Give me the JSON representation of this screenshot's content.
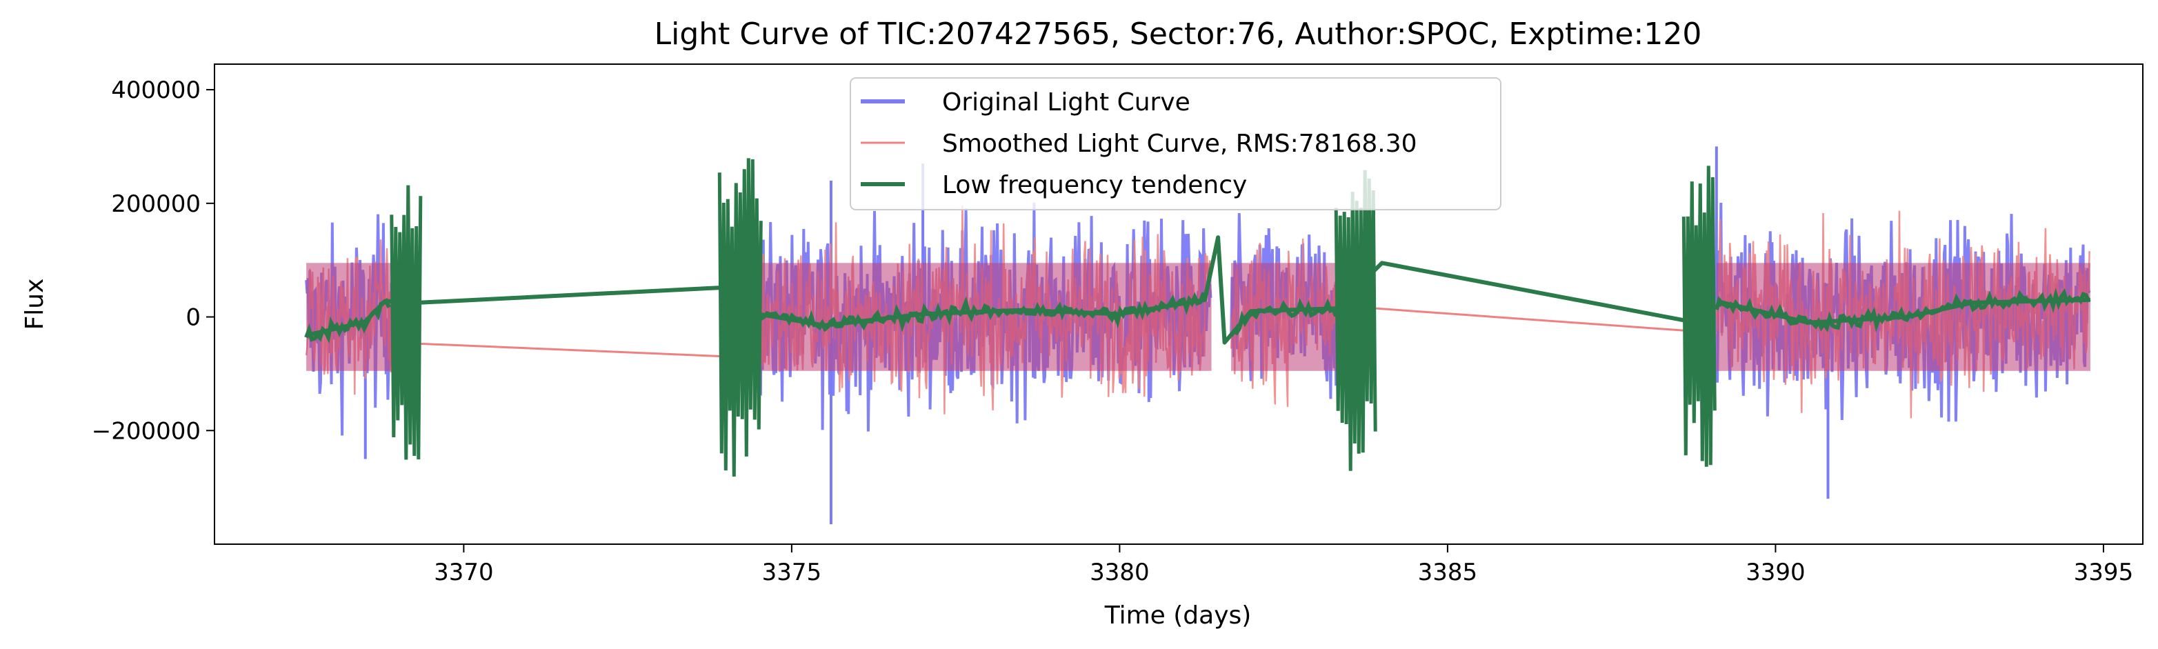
{
  "chart_data": {
    "type": "line",
    "title": "Light Curve of TIC:207427565, Sector:76, Author:SPOC, Exptime:120",
    "xlabel": "Time (days)",
    "ylabel": "Flux",
    "xlim": [
      3366.2,
      3395.6
    ],
    "ylim": [
      -400000,
      445000
    ],
    "xticks": [
      3370,
      3375,
      3380,
      3385,
      3390,
      3395
    ],
    "xtick_labels": [
      "3370",
      "3375",
      "3380",
      "3385",
      "3390",
      "3395"
    ],
    "yticks": [
      -200000,
      0,
      200000,
      400000
    ],
    "ytick_labels": [
      "−200000",
      "0",
      "200000",
      "400000"
    ],
    "grid": false,
    "legend_position": "top-center",
    "segments": [
      [
        3367.6,
        3368.9
      ],
      [
        3374.5,
        3381.4
      ],
      [
        3381.7,
        3383.3
      ],
      [
        3389.1,
        3394.8
      ]
    ],
    "series": [
      {
        "name": "Original Light Curve",
        "color": "#7b7bf5",
        "amplitude": 110000,
        "extremes": {
          "min": -365000,
          "max": 300000
        }
      },
      {
        "name": "Smoothed Light Curve, RMS:78168.30",
        "color": "#f08080",
        "amplitude": 95000,
        "gap_connections": [
          [
            3368.9,
            -45000
          ],
          [
            3374.5,
            -72000
          ],
          [
            3383.3,
            20000
          ],
          [
            3389.1,
            -28000
          ]
        ]
      },
      {
        "name": "Low frequency tendency",
        "color": "#2a7a4a",
        "trend_points": [
          [
            3367.6,
            -32000
          ],
          [
            3368.0,
            -22000
          ],
          [
            3368.5,
            -8000
          ],
          [
            3368.8,
            28000
          ],
          [
            3369.3,
            25000
          ],
          [
            3374.0,
            52000
          ],
          [
            3374.5,
            5000
          ],
          [
            3375.5,
            -15000
          ],
          [
            3377.0,
            5000
          ],
          [
            3378.5,
            12000
          ],
          [
            3380.0,
            5000
          ],
          [
            3381.3,
            30000
          ],
          [
            3381.5,
            140000
          ],
          [
            3381.6,
            -45000
          ],
          [
            3382.0,
            10000
          ],
          [
            3383.3,
            15000
          ],
          [
            3384.0,
            95000
          ],
          [
            3388.7,
            -8000
          ],
          [
            3389.2,
            25000
          ],
          [
            3390.5,
            -10000
          ],
          [
            3392.0,
            0
          ],
          [
            3393.0,
            25000
          ],
          [
            3394.8,
            30000
          ]
        ],
        "burst_regions": [
          [
            3368.9,
            3369.35
          ],
          [
            3373.9,
            3374.55
          ],
          [
            3383.3,
            3383.9
          ],
          [
            3388.6,
            3389.1
          ]
        ],
        "burst_amplitude": 290000
      }
    ]
  }
}
